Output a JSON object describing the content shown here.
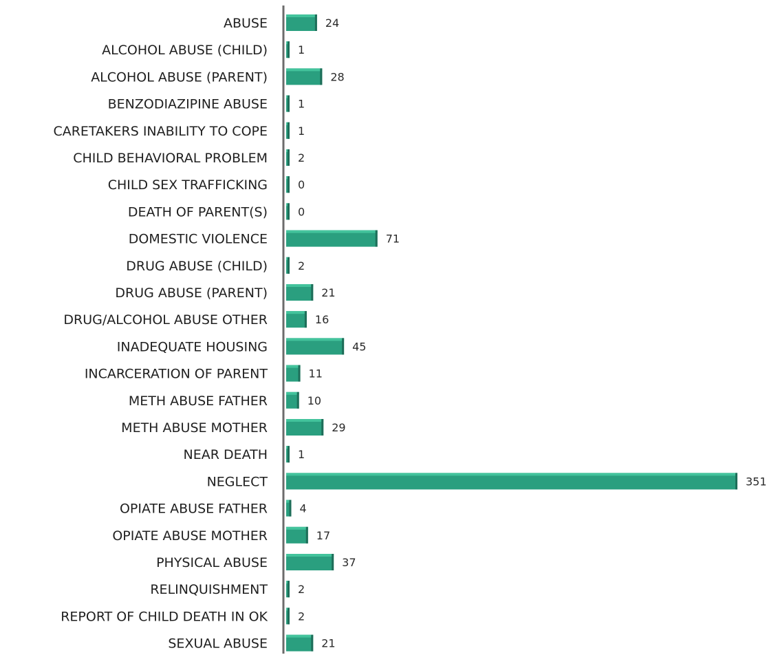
{
  "chart_data": {
    "type": "bar",
    "orientation": "horizontal",
    "categories": [
      "ABUSE",
      "ALCOHOL ABUSE (CHILD)",
      "ALCOHOL ABUSE (PARENT)",
      "BENZODIAZIPINE ABUSE",
      "CARETAKERS INABILITY TO COPE",
      "CHILD BEHAVIORAL PROBLEM",
      "CHILD SEX TRAFFICKING",
      "DEATH OF PARENT(S)",
      "DOMESTIC VIOLENCE",
      "DRUG ABUSE (CHILD)",
      "DRUG ABUSE (PARENT)",
      "DRUG/ALCOHOL ABUSE OTHER",
      "INADEQUATE HOUSING",
      "INCARCERATION OF PARENT",
      "METH ABUSE FATHER",
      "METH ABUSE MOTHER",
      "NEAR DEATH",
      "NEGLECT",
      "OPIATE ABUSE FATHER",
      "OPIATE ABUSE MOTHER",
      "PHYSICAL ABUSE",
      "RELINQUISHMENT",
      "REPORT OF CHILD DEATH IN OK",
      "SEXUAL ABUSE"
    ],
    "values": [
      24,
      1,
      28,
      1,
      1,
      2,
      0,
      0,
      71,
      2,
      21,
      16,
      45,
      11,
      10,
      29,
      1,
      351,
      4,
      17,
      37,
      2,
      2,
      21
    ],
    "data_labels": [
      "24",
      "1",
      "28",
      "1",
      "1",
      "2",
      "0",
      "0",
      "71",
      "2",
      "21",
      "16",
      "45",
      "11",
      "10",
      "29",
      "1",
      "351",
      "4",
      "17",
      "37",
      "2",
      "2",
      "21"
    ],
    "xlim": [
      0,
      351
    ],
    "grid": false,
    "legend": "none",
    "colors": {
      "bar_fill": "#2a9f7f",
      "bar_top": "#43c39c",
      "bar_shade": "#1e6e59",
      "axis": "#6b6b6b"
    }
  }
}
